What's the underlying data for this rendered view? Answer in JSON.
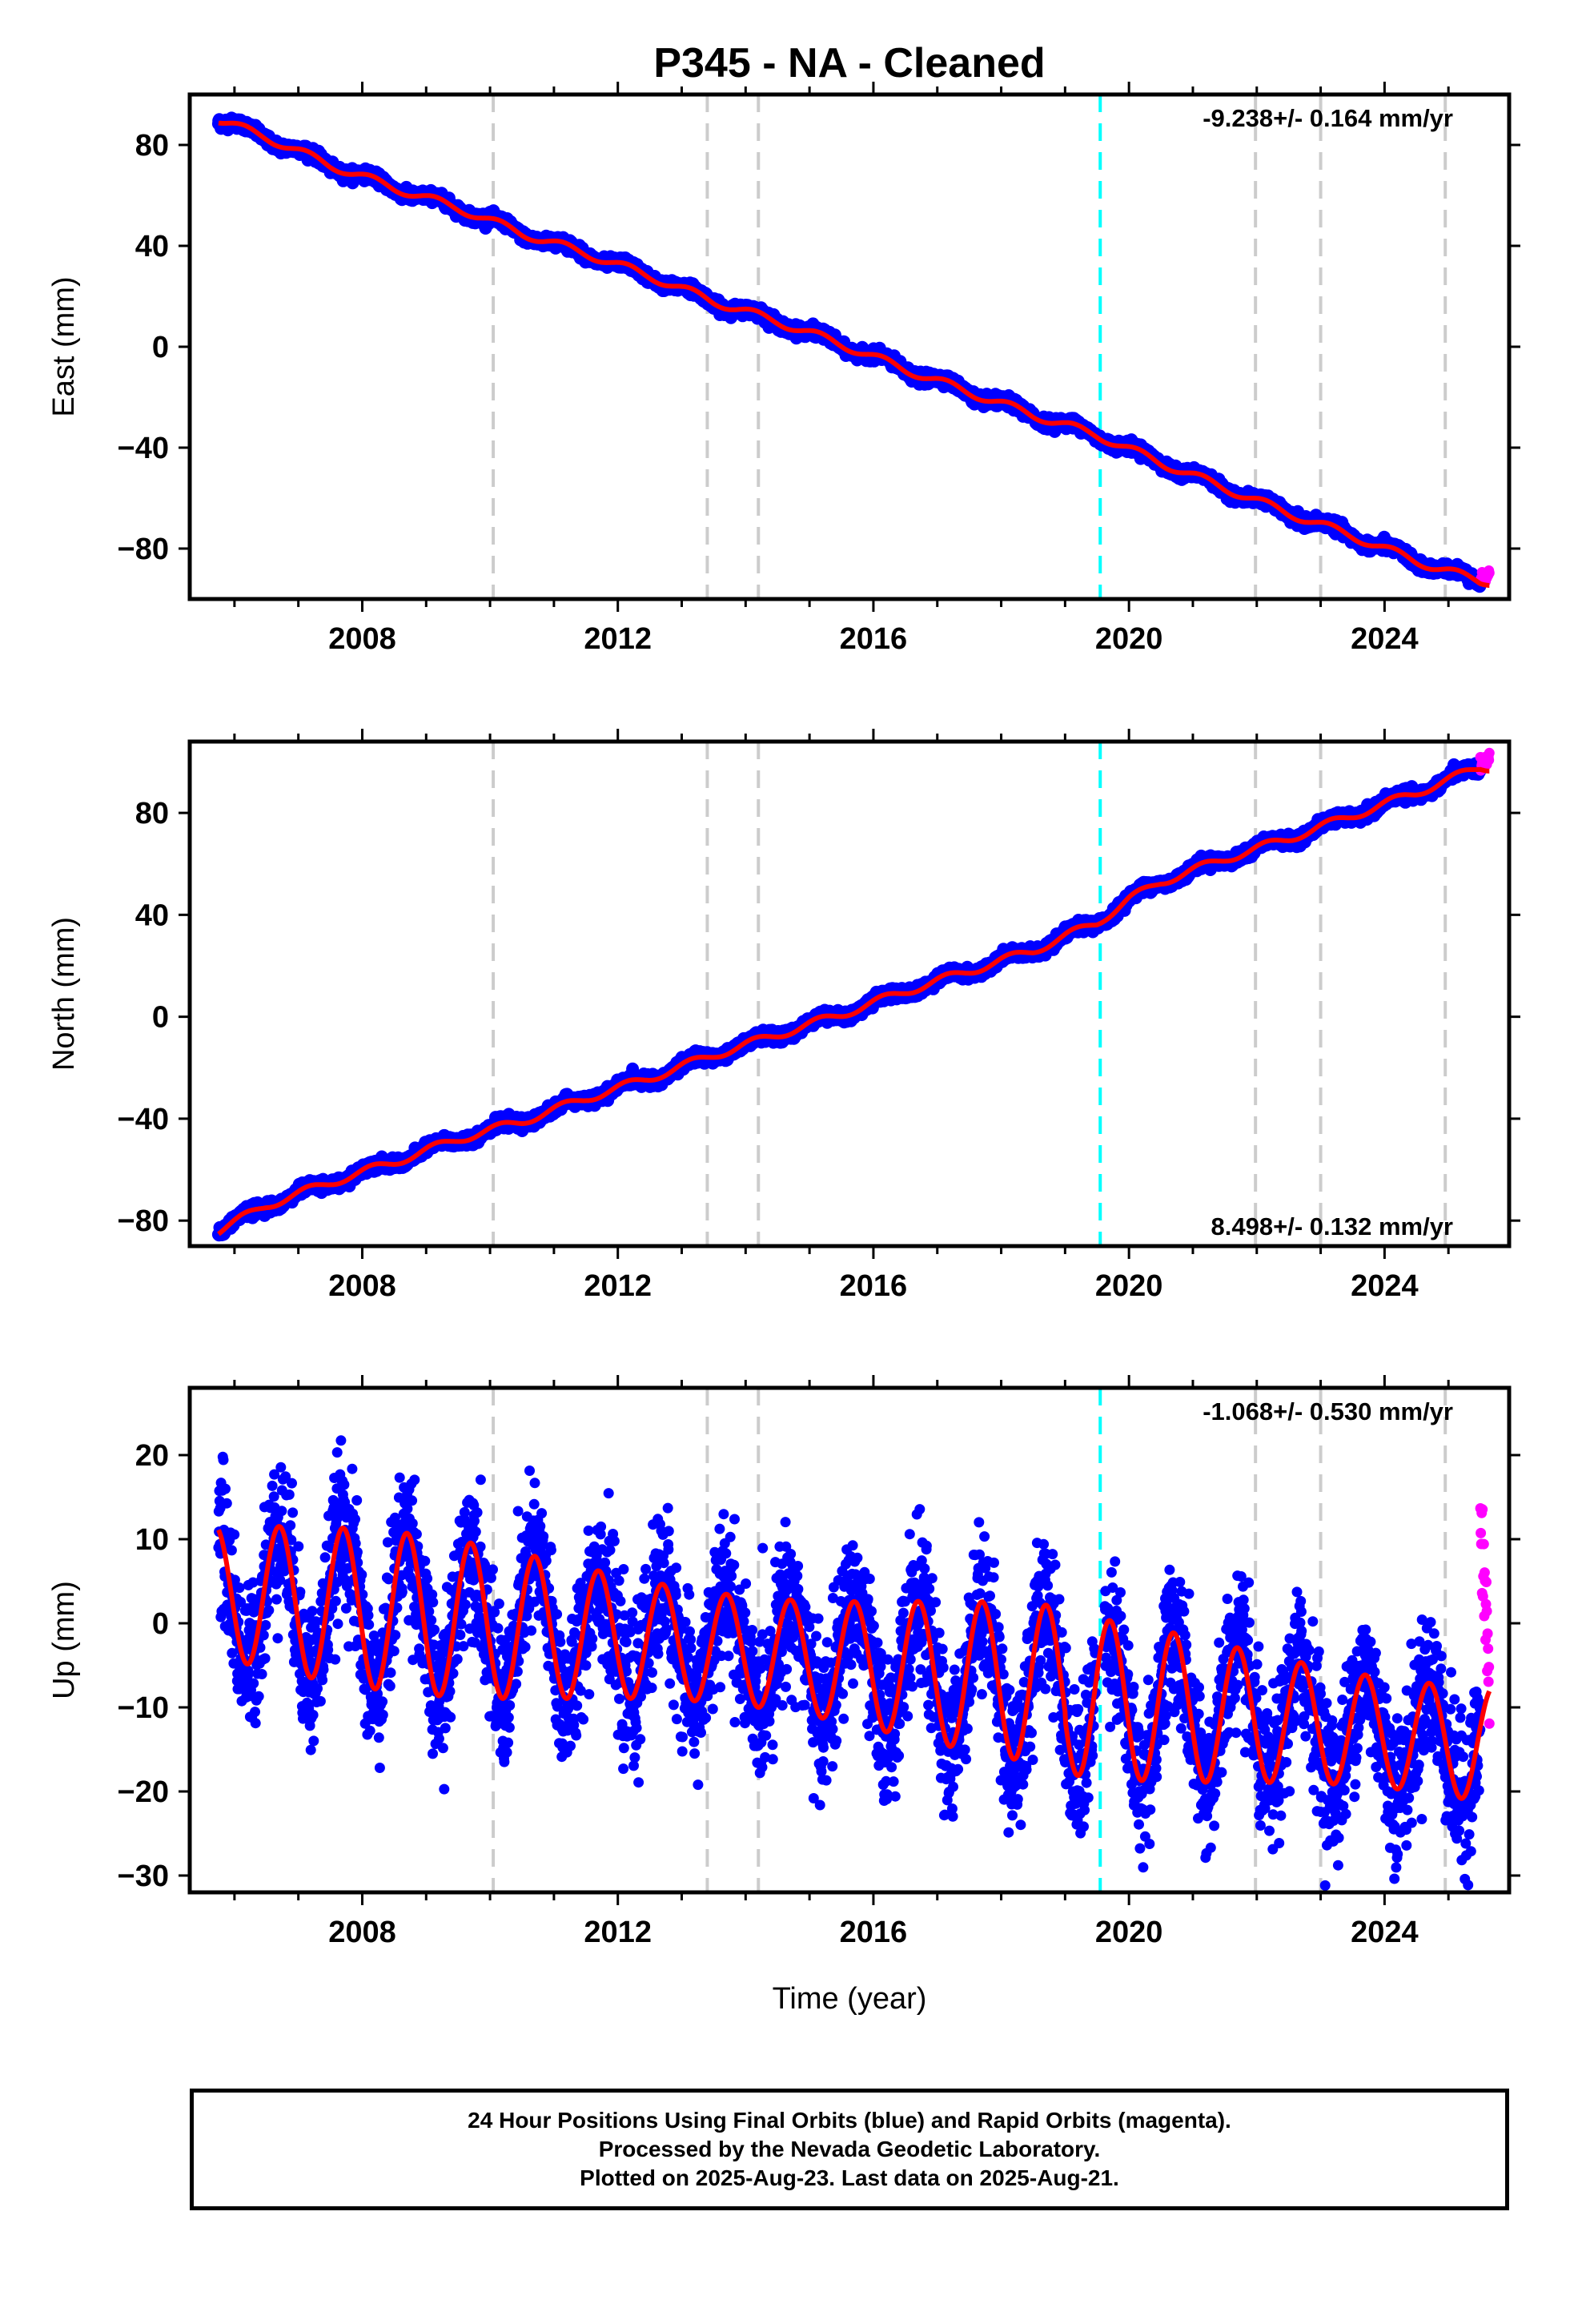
{
  "figure": {
    "title": "P345  - NA - Cleaned",
    "xlabel": "Time (year)",
    "footer": [
      "24 Hour Positions Using Final Orbits (blue) and Rapid Orbits (magenta).",
      "Processed by the Nevada Geodetic Laboratory.",
      "Plotted on 2025-Aug-23. Last data on 2025-Aug-21."
    ]
  },
  "colors": {
    "final_orbits": "#0000ff",
    "rapid_orbits": "#ff00ff",
    "model_fit": "#ff0000",
    "event_line": "#cccccc",
    "earthquake_line": "#00ffff"
  },
  "chart_data": [
    {
      "type": "scatter",
      "component": "east",
      "ylabel": "East (mm)",
      "rate": "-9.238+/- 0.164 mm/yr",
      "rate_position": "top-right",
      "xlim": [
        2005.3,
        2025.95
      ],
      "ylim": [
        -100,
        100
      ],
      "xticks": [
        2008,
        2012,
        2016,
        2020,
        2024
      ],
      "yticks": [
        -80,
        -40,
        0,
        40,
        80
      ],
      "event_lines": [
        2010.05,
        2013.4,
        2014.2,
        2021.98,
        2023.0,
        2024.95
      ],
      "earthquake_lines": [
        2019.55
      ],
      "series": [
        {
          "name": "Final Orbits",
          "color": "#0000ff",
          "x": [
            2005.75,
            2006.5,
            2007.5,
            2008.5,
            2009.5,
            2010.5,
            2011.5,
            2012.5,
            2013.5,
            2014.5,
            2015.5,
            2016.5,
            2017.5,
            2018.5,
            2019.5,
            2020.5,
            2021.5,
            2022.5,
            2023.5,
            2024.5,
            2025.5
          ],
          "y": [
            90,
            83,
            72,
            63,
            55,
            45,
            37,
            28,
            18,
            10,
            1,
            -9,
            -18,
            -27,
            -35,
            -46,
            -56,
            -66,
            -75,
            -85,
            -93
          ]
        },
        {
          "name": "Rapid Orbits",
          "color": "#ff00ff",
          "x": [
            2025.5,
            2025.55,
            2025.6,
            2025.64
          ],
          "y": [
            -93,
            -92,
            -90,
            -88
          ]
        }
      ]
    },
    {
      "type": "scatter",
      "component": "north",
      "ylabel": "North (mm)",
      "rate": "8.498+/- 0.132 mm/yr",
      "rate_position": "bottom-right",
      "xlim": [
        2005.3,
        2025.95
      ],
      "ylim": [
        -90,
        108
      ],
      "xticks": [
        2008,
        2012,
        2016,
        2020,
        2024
      ],
      "yticks": [
        -80,
        -40,
        0,
        40,
        80
      ],
      "event_lines": [
        2010.05,
        2013.4,
        2014.2,
        2021.98,
        2023.0,
        2024.95
      ],
      "earthquake_lines": [
        2019.55
      ],
      "coseismic_offset_mm": 8,
      "series": [
        {
          "name": "Final Orbits",
          "color": "#0000ff",
          "x": [
            2005.75,
            2006.5,
            2007.5,
            2008.5,
            2009.5,
            2010.5,
            2011.5,
            2012.5,
            2013.5,
            2014.5,
            2015.5,
            2016.5,
            2017.5,
            2018.5,
            2019.5,
            2020.0,
            2020.5,
            2021.5,
            2022.5,
            2023.5,
            2024.5,
            2025.5
          ],
          "y": [
            -84,
            -74,
            -65,
            -57,
            -48,
            -41,
            -32,
            -24,
            -15,
            -7,
            1,
            10,
            18,
            26,
            37,
            46,
            53,
            62,
            70,
            79,
            88,
            98
          ]
        },
        {
          "name": "Rapid Orbits",
          "color": "#ff00ff",
          "x": [
            2025.5,
            2025.55,
            2025.6,
            2025.64
          ],
          "y": [
            99,
            100,
            101,
            102
          ]
        }
      ]
    },
    {
      "type": "scatter",
      "component": "up",
      "ylabel": "Up (mm)",
      "rate": "-1.068+/- 0.530 mm/yr",
      "rate_position": "top-right",
      "xlim": [
        2005.3,
        2025.95
      ],
      "ylim": [
        -32,
        28
      ],
      "xticks": [
        2008,
        2012,
        2016,
        2020,
        2024
      ],
      "yticks": [
        -30,
        -20,
        -10,
        0,
        10,
        20
      ],
      "event_lines": [
        2010.05,
        2013.4,
        2014.2,
        2021.98,
        2023.0,
        2024.95
      ],
      "earthquake_lines": [
        2019.55
      ],
      "seasonal_amplitude_mm": [
        8,
        10
      ],
      "series": [
        {
          "name": "Final Orbits",
          "color": "#0000ff",
          "x": [
            2005.75,
            2006.25,
            2006.75,
            2007.25,
            2007.75,
            2008.75,
            2009.75,
            2010.75,
            2011.75,
            2012.75,
            2013.75,
            2014.75,
            2015.75,
            2016.75,
            2017.75,
            2018.75,
            2019.75,
            2020.75,
            2021.75,
            2022.75,
            2023.75,
            2024.75,
            2025.5
          ],
          "y": [
            14,
            -2,
            13,
            -3,
            12,
            11,
            10,
            10,
            9,
            8,
            14,
            11,
            10,
            9,
            8,
            7,
            3,
            2,
            1,
            6,
            -1,
            -2,
            -7
          ]
        },
        {
          "name": "Rapid Orbits",
          "color": "#ff00ff",
          "x": [
            2025.5,
            2025.55,
            2025.6,
            2025.64
          ],
          "y": [
            11,
            5,
            0,
            -8
          ]
        }
      ]
    }
  ]
}
